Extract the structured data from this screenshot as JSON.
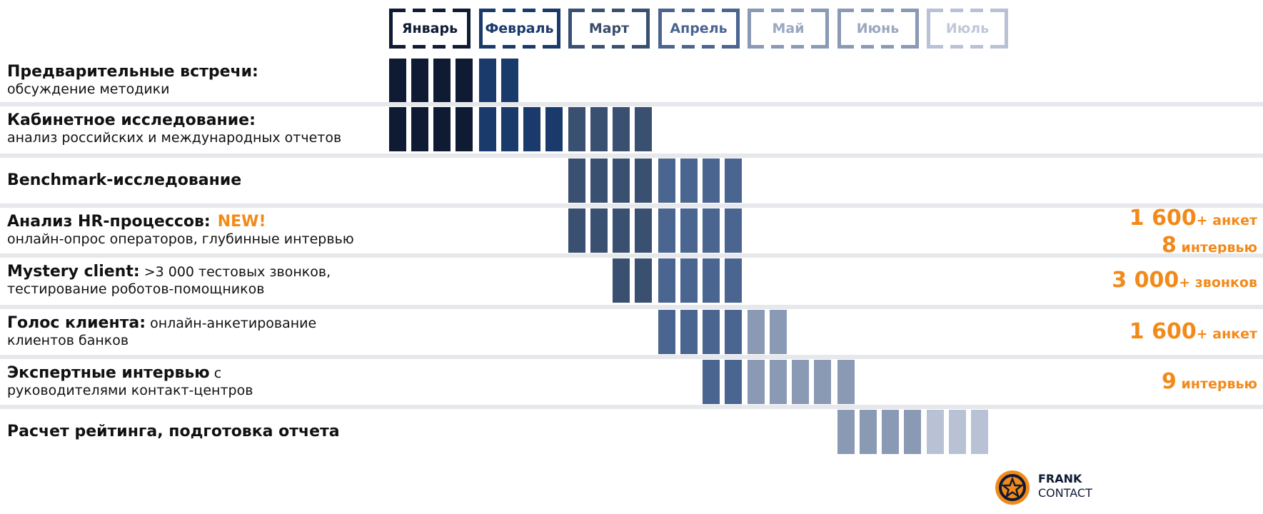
{
  "months": [
    "Январь",
    "Февраль",
    "Март",
    "Апрель",
    "Май",
    "Июнь",
    "Июль"
  ],
  "rows": [
    {
      "title": "Предварительные встречи:",
      "sub": "обсуждение методики"
    },
    {
      "title": "Кабинетное исследование:",
      "sub": "анализ российских и международных отчетов"
    },
    {
      "title": "Benchmark-исследование"
    },
    {
      "title": "Анализ HR-процессов:",
      "badge": "NEW!",
      "sub": "онлайн-опрос операторов, глубинные интервью",
      "stats": [
        {
          "num": "1 600",
          "unit": "+ анкет"
        },
        {
          "num": "8",
          "unit": " интервью"
        }
      ]
    },
    {
      "title": "Mystery client:",
      "text": ">3 000 тестовых звонков,",
      "sub": "тестирование роботов-помощников",
      "stats": [
        {
          "num": "3 000",
          "unit": "+ звонков"
        }
      ]
    },
    {
      "title": "Голос клиента:",
      "text": "онлайн-анкетирование",
      "sub": "клиентов банков",
      "stats": [
        {
          "num": "1 600",
          "unit": "+ анкет"
        }
      ]
    },
    {
      "title": "Экспертные интервью",
      "text": "с",
      "sub": "руководителями контакт-центров",
      "stats": [
        {
          "num": "9",
          "unit": " интервью"
        }
      ]
    },
    {
      "title": "Расчет рейтинга, подготовка отчета"
    }
  ],
  "logo": {
    "line1": "FRANK",
    "line2": "CONTACT"
  }
}
